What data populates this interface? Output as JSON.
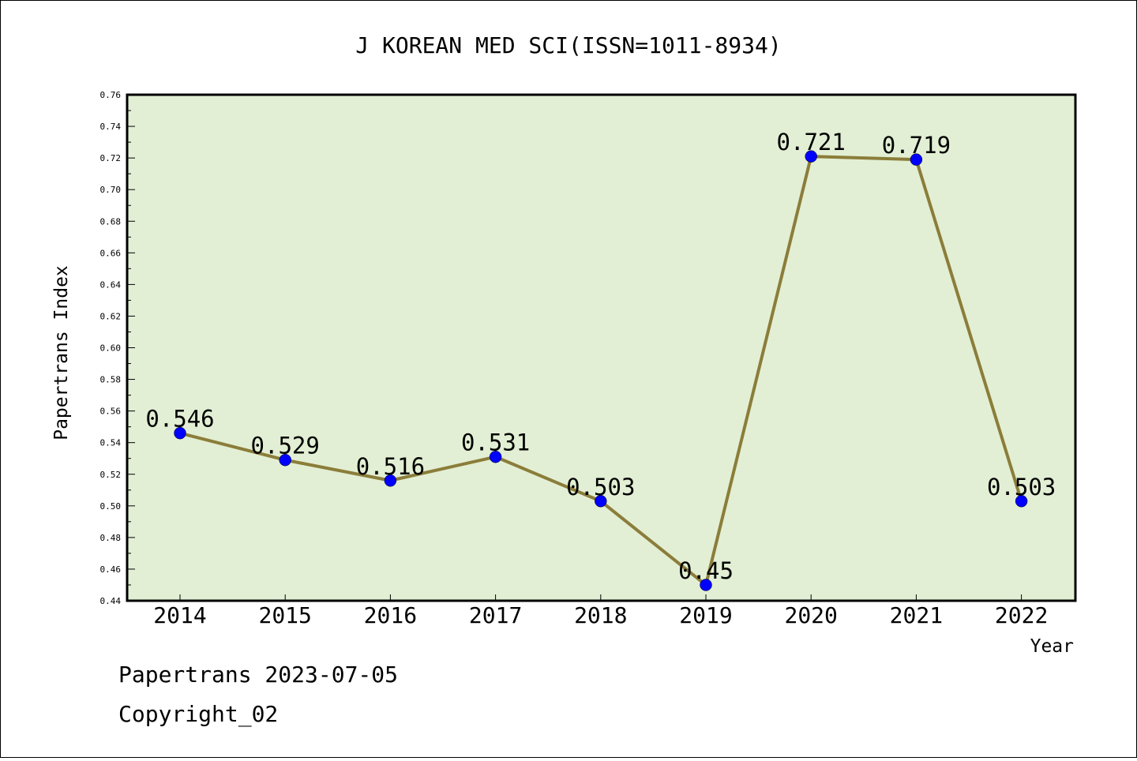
{
  "chart_data": {
    "type": "line",
    "title": "J KOREAN MED SCI(ISSN=1011-8934)",
    "xlabel": "Year",
    "ylabel": "Papertrans Index",
    "categories": [
      "2014",
      "2015",
      "2016",
      "2017",
      "2018",
      "2019",
      "2020",
      "2021",
      "2022"
    ],
    "series": [
      {
        "values": [
          0.546,
          0.529,
          0.516,
          0.531,
          0.503,
          0.45,
          0.721,
          0.719,
          0.503
        ]
      }
    ],
    "data_labels": [
      "0.546",
      "0.529",
      "0.516",
      "0.531",
      "0.503",
      "0.45",
      "0.721",
      "0.719",
      "0.503"
    ],
    "ylim": [
      0.44,
      0.76
    ],
    "yticks": [
      "0.44",
      "0.46",
      "0.48",
      "0.50",
      "0.52",
      "0.54",
      "0.56",
      "0.58",
      "0.60",
      "0.62",
      "0.64",
      "0.66",
      "0.68",
      "0.70",
      "0.72",
      "0.74",
      "0.76"
    ],
    "grid": false,
    "legend": "none",
    "colors": {
      "plot_background": "#e2efd4",
      "line": "#8b7d3a",
      "marker": "#0000ff"
    }
  },
  "footer": {
    "line1": "Papertrans 2023-07-05",
    "line2": "Copyright_02"
  }
}
